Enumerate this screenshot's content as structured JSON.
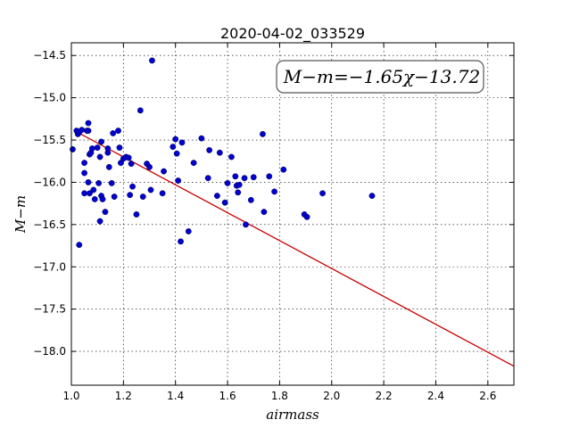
{
  "chart_data": {
    "type": "scatter",
    "title": "2020-04-02_033529",
    "xlabel": "airmass",
    "ylabel": "M−m",
    "xlim": [
      1.0,
      2.7
    ],
    "ylim": [
      -18.4,
      -14.35
    ],
    "xticks": [
      "1.0",
      "1.2",
      "1.4",
      "1.6",
      "1.8",
      "2.0",
      "2.2",
      "2.4",
      "2.6"
    ],
    "yticks": [
      "−14.5",
      "−15.0",
      "−15.5",
      "−16.0",
      "−16.5",
      "−17.0",
      "−17.5",
      "−18.0"
    ],
    "grid": true,
    "annotation": "M−m=−1.65χ−13.72",
    "point_color": "#0000cc",
    "fit_color": "#cc0000",
    "fit": {
      "slope": -1.65,
      "intercept": -13.72,
      "x_range": [
        1.03,
        2.7
      ]
    },
    "points": [
      [
        1.005,
        -15.61
      ],
      [
        1.02,
        -15.39
      ],
      [
        1.025,
        -15.43
      ],
      [
        1.03,
        -15.41
      ],
      [
        1.03,
        -16.74
      ],
      [
        1.04,
        -15.38
      ],
      [
        1.05,
        -16.13
      ],
      [
        1.05,
        -15.77
      ],
      [
        1.05,
        -15.89
      ],
      [
        1.06,
        -15.39
      ],
      [
        1.065,
        -15.3
      ],
      [
        1.065,
        -15.39
      ],
      [
        1.065,
        -16.0
      ],
      [
        1.07,
        -15.67
      ],
      [
        1.07,
        -16.13
      ],
      [
        1.075,
        -15.65
      ],
      [
        1.08,
        -15.6
      ],
      [
        1.085,
        -16.09
      ],
      [
        1.09,
        -16.2
      ],
      [
        1.1,
        -15.59
      ],
      [
        1.105,
        -16.01
      ],
      [
        1.11,
        -15.7
      ],
      [
        1.11,
        -16.46
      ],
      [
        1.115,
        -15.52
      ],
      [
        1.115,
        -16.16
      ],
      [
        1.12,
        -16.2
      ],
      [
        1.13,
        -16.35
      ],
      [
        1.14,
        -15.65
      ],
      [
        1.14,
        -15.6
      ],
      [
        1.145,
        -15.82
      ],
      [
        1.155,
        -16.01
      ],
      [
        1.16,
        -15.42
      ],
      [
        1.165,
        -16.17
      ],
      [
        1.18,
        -15.39
      ],
      [
        1.185,
        -15.59
      ],
      [
        1.19,
        -15.77
      ],
      [
        1.2,
        -15.72
      ],
      [
        1.21,
        -15.7
      ],
      [
        1.22,
        -15.71
      ],
      [
        1.225,
        -16.15
      ],
      [
        1.23,
        -15.78
      ],
      [
        1.235,
        -16.05
      ],
      [
        1.25,
        -16.38
      ],
      [
        1.265,
        -15.15
      ],
      [
        1.275,
        -16.17
      ],
      [
        1.29,
        -15.78
      ],
      [
        1.3,
        -15.82
      ],
      [
        1.305,
        -16.09
      ],
      [
        1.31,
        -14.56
      ],
      [
        1.35,
        -16.13
      ],
      [
        1.355,
        -15.87
      ],
      [
        1.39,
        -15.58
      ],
      [
        1.4,
        -15.49
      ],
      [
        1.405,
        -15.66
      ],
      [
        1.41,
        -15.98
      ],
      [
        1.42,
        -16.7
      ],
      [
        1.425,
        -15.53
      ],
      [
        1.45,
        -16.58
      ],
      [
        1.47,
        -15.77
      ],
      [
        1.5,
        -15.48
      ],
      [
        1.525,
        -15.95
      ],
      [
        1.53,
        -15.62
      ],
      [
        1.56,
        -16.16
      ],
      [
        1.57,
        -15.65
      ],
      [
        1.59,
        -16.24
      ],
      [
        1.6,
        -16.01
      ],
      [
        1.615,
        -15.7
      ],
      [
        1.63,
        -15.93
      ],
      [
        1.635,
        -16.04
      ],
      [
        1.64,
        -16.12
      ],
      [
        1.645,
        -16.03
      ],
      [
        1.665,
        -15.95
      ],
      [
        1.67,
        -16.5
      ],
      [
        1.69,
        -16.21
      ],
      [
        1.7,
        -15.94
      ],
      [
        1.735,
        -15.43
      ],
      [
        1.74,
        -16.35
      ],
      [
        1.76,
        -15.93
      ],
      [
        1.78,
        -16.11
      ],
      [
        1.815,
        -15.85
      ],
      [
        1.895,
        -16.38
      ],
      [
        1.905,
        -16.41
      ],
      [
        1.965,
        -16.13
      ],
      [
        2.155,
        -16.16
      ]
    ]
  }
}
